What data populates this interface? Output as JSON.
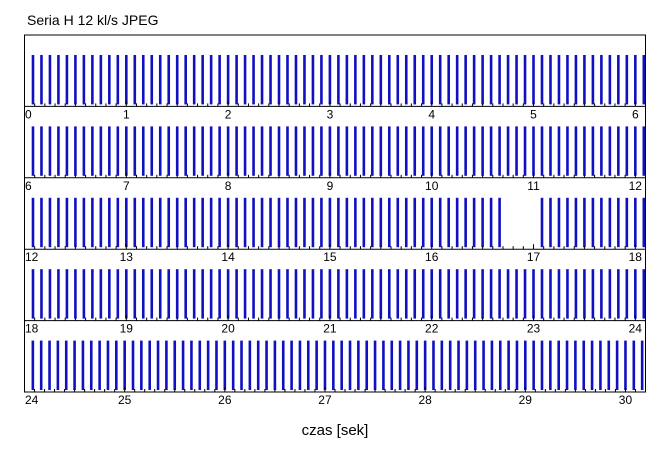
{
  "chart_data": {
    "type": "bar",
    "title": "Seria H 12 kl/s JPEG",
    "xlabel": "czas [sek]",
    "ylabel": "",
    "frame_rate_fps": 12,
    "duration_s": 30.2,
    "rows": [
      {
        "start_s": 0,
        "end_s": 6.1,
        "tick_labels": [
          "0",
          "1",
          "2",
          "3",
          "4",
          "5",
          "6"
        ]
      },
      {
        "start_s": 6,
        "end_s": 12.1,
        "tick_labels": [
          "6",
          "7",
          "8",
          "9",
          "10",
          "11",
          "12"
        ]
      },
      {
        "start_s": 12,
        "end_s": 18.1,
        "tick_labels": [
          "12",
          "13",
          "14",
          "15",
          "16",
          "17",
          "18"
        ]
      },
      {
        "start_s": 18,
        "end_s": 24.1,
        "tick_labels": [
          "18",
          "19",
          "20",
          "21",
          "22",
          "23",
          "24"
        ]
      },
      {
        "start_s": 24,
        "end_s": 30.2,
        "tick_labels": [
          "24",
          "25",
          "26",
          "27",
          "28",
          "29",
          "30"
        ]
      }
    ],
    "frame_gaps_s": [
      [
        16.72,
        17.05
      ]
    ],
    "bar_color": "#1010c0",
    "minor_tick_color": "#000000",
    "grid": false,
    "legend": "none"
  }
}
